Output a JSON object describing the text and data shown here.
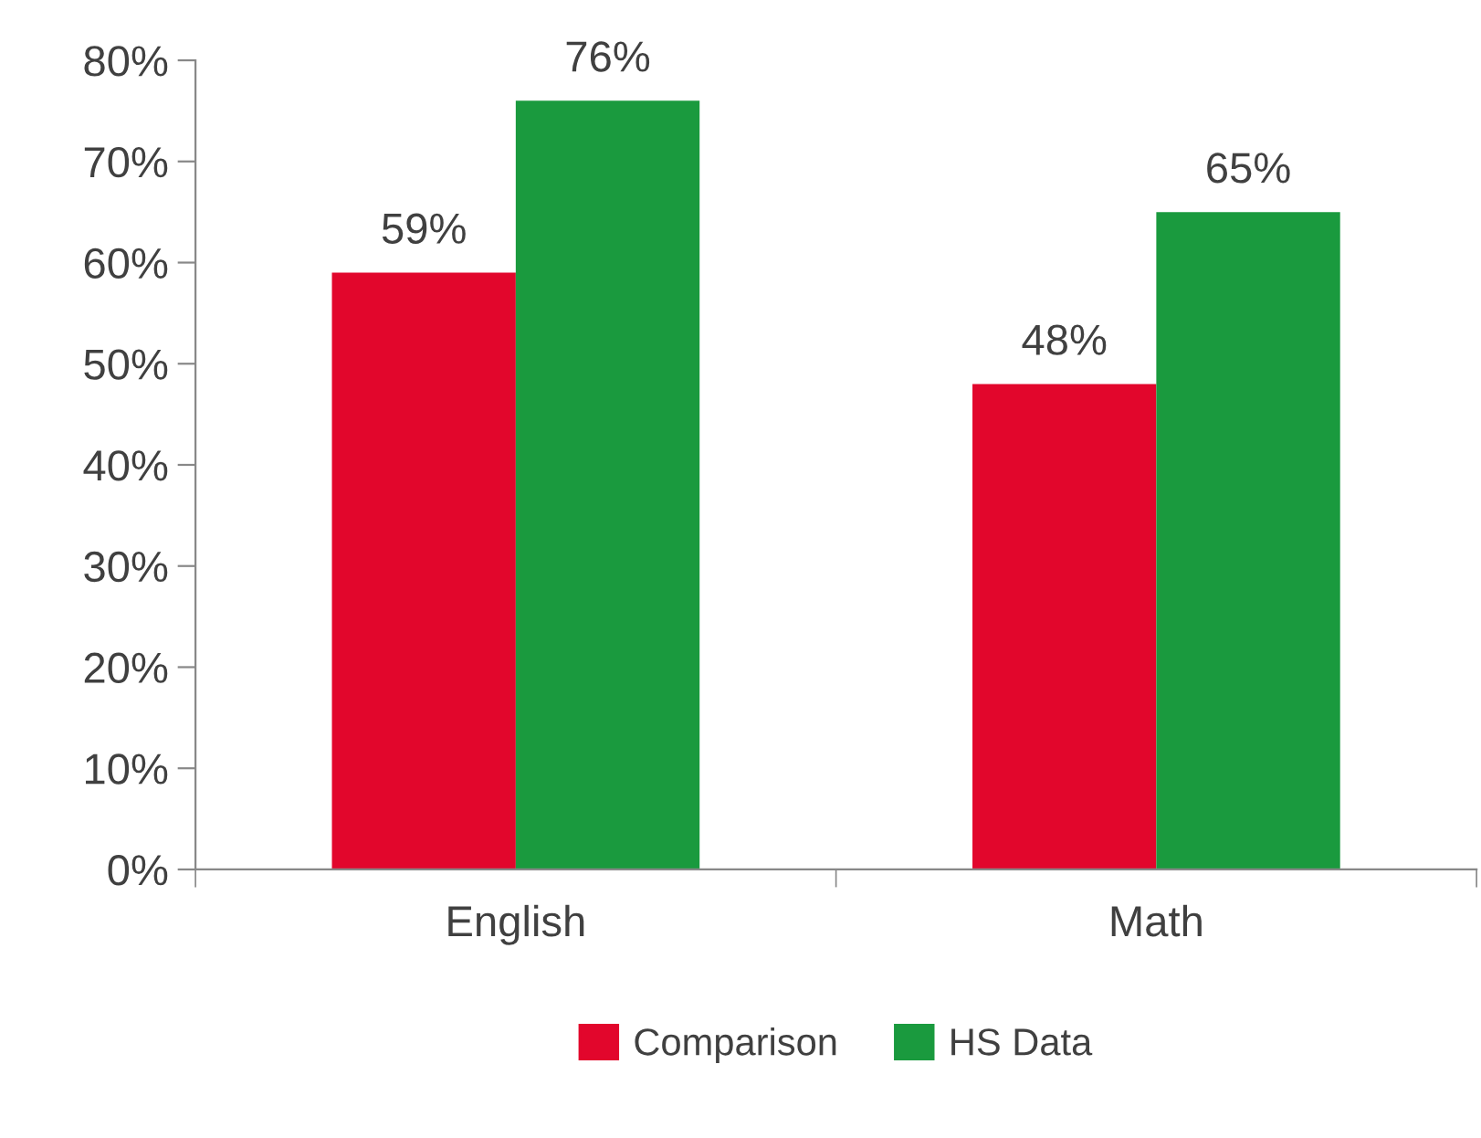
{
  "chart_data": {
    "type": "bar",
    "categories": [
      "English",
      "Math"
    ],
    "series": [
      {
        "name": "Comparison",
        "color": "#e2062c",
        "values": [
          59,
          48
        ],
        "value_labels": [
          "59%",
          "48%"
        ]
      },
      {
        "name": "HS Data",
        "color": "#1a9a3e",
        "values": [
          76,
          65
        ],
        "value_labels": [
          "76%",
          "65%"
        ]
      }
    ],
    "ylim": [
      0,
      80
    ],
    "yticks": [
      {
        "value": 0,
        "label": "0%"
      },
      {
        "value": 10,
        "label": "10%"
      },
      {
        "value": 20,
        "label": "20%"
      },
      {
        "value": 30,
        "label": "30%"
      },
      {
        "value": 40,
        "label": "40%"
      },
      {
        "value": 50,
        "label": "50%"
      },
      {
        "value": 60,
        "label": "60%"
      },
      {
        "value": 70,
        "label": "70%"
      },
      {
        "value": 80,
        "label": "80%"
      }
    ],
    "grid": false,
    "legend": "bottom"
  }
}
